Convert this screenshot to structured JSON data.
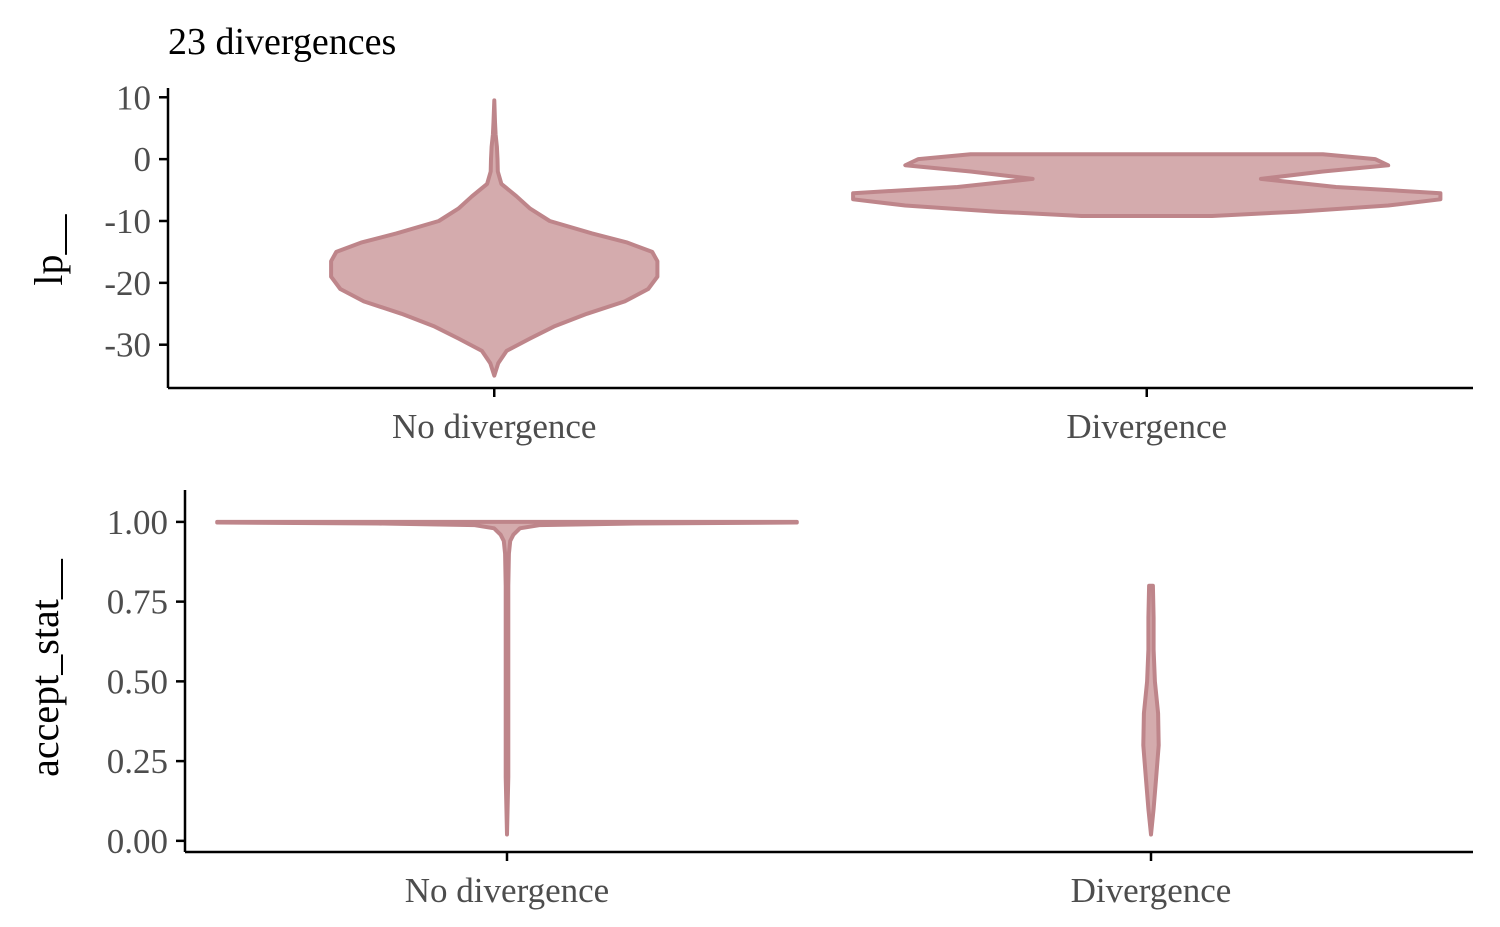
{
  "title": "23 divergences",
  "colors": {
    "fill": "#d4abad",
    "outline": "#be858a"
  },
  "chart_data": [
    {
      "type": "violin",
      "ylabel": "lp__",
      "categories": [
        "No divergence",
        "Divergence"
      ],
      "yticks": [
        "10",
        "0",
        "-10",
        "-20",
        "-30"
      ],
      "ylim": [
        -37,
        11.5
      ],
      "violins": [
        {
          "category": "No divergence",
          "max_half_width": 0.25,
          "profile": [
            [
              -35,
              0.0
            ],
            [
              -33,
              0.006
            ],
            [
              -31,
              0.019
            ],
            [
              -29,
              0.055
            ],
            [
              -27,
              0.093
            ],
            [
              -25,
              0.142
            ],
            [
              -23,
              0.2
            ],
            [
              -21,
              0.236
            ],
            [
              -19,
              0.25
            ],
            [
              -17.5,
              0.25
            ],
            [
              -16.5,
              0.25
            ],
            [
              -15,
              0.242
            ],
            [
              -13.5,
              0.204
            ],
            [
              -12,
              0.15
            ],
            [
              -10,
              0.085
            ],
            [
              -8,
              0.055
            ],
            [
              -6,
              0.034
            ],
            [
              -4,
              0.011
            ],
            [
              -2,
              0.0055
            ],
            [
              0,
              0.005
            ],
            [
              2,
              0.004
            ],
            [
              4,
              0.002
            ],
            [
              6,
              0.0012
            ],
            [
              9.5,
              0.0
            ]
          ]
        },
        {
          "category": "Divergence",
          "max_half_width": 0.45,
          "profile": [
            [
              -9.2,
              0.0
            ],
            [
              -9.2,
              0.1
            ],
            [
              -8.5,
              0.23
            ],
            [
              -7.5,
              0.37
            ],
            [
              -6.5,
              0.45
            ],
            [
              -5.5,
              0.45
            ],
            [
              -4.5,
              0.29
            ],
            [
              -3.2,
              0.175
            ],
            [
              -2,
              0.27
            ],
            [
              -1,
              0.37
            ],
            [
              0,
              0.35
            ],
            [
              0.8,
              0.27
            ],
            [
              0.8,
              0.0
            ]
          ]
        }
      ]
    },
    {
      "type": "violin",
      "ylabel": "accept_stat__",
      "categories": [
        "No divergence",
        "Divergence"
      ],
      "yticks": [
        "1.00",
        "0.75",
        "0.50",
        "0.25",
        "0.00"
      ],
      "ylim": [
        -0.035,
        1.1
      ],
      "violins": [
        {
          "category": "No divergence",
          "max_half_width": 0.45,
          "profile": [
            [
              0.02,
              0.0
            ],
            [
              0.2,
              0.002
            ],
            [
              0.5,
              0.002
            ],
            [
              0.8,
              0.002
            ],
            [
              0.9,
              0.003
            ],
            [
              0.94,
              0.005
            ],
            [
              0.96,
              0.01
            ],
            [
              0.98,
              0.02
            ],
            [
              0.99,
              0.05
            ],
            [
              0.995,
              0.2
            ],
            [
              0.998,
              0.45
            ],
            [
              1.0,
              0.45
            ],
            [
              1.0,
              0.0
            ]
          ]
        },
        {
          "category": "Divergence",
          "max_half_width": 0.012,
          "profile": [
            [
              0.02,
              0.0
            ],
            [
              0.1,
              0.004
            ],
            [
              0.2,
              0.008
            ],
            [
              0.3,
              0.012
            ],
            [
              0.4,
              0.011
            ],
            [
              0.5,
              0.006
            ],
            [
              0.6,
              0.004
            ],
            [
              0.7,
              0.004
            ],
            [
              0.8,
              0.003
            ],
            [
              0.8,
              0.0
            ]
          ]
        }
      ]
    }
  ]
}
